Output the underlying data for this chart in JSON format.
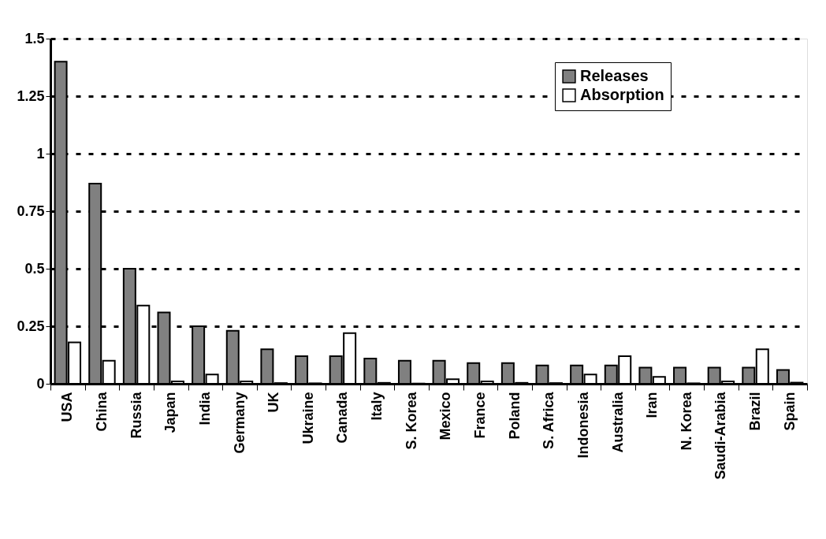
{
  "chart_data": {
    "type": "bar",
    "categories": [
      "USA",
      "China",
      "Russia",
      "Japan",
      "India",
      "Germany",
      "UK",
      "Ukraine",
      "Canada",
      "Italy",
      "S. Korea",
      "Mexico",
      "France",
      "Poland",
      "S. Africa",
      "Indonesia",
      "Australia",
      "Iran",
      "N. Korea",
      "Saudi-Arabia",
      "Brazil",
      "Spain"
    ],
    "series": [
      {
        "name": "Releases",
        "color": "#808080",
        "values": [
          1.4,
          0.87,
          0.5,
          0.31,
          0.25,
          0.23,
          0.15,
          0.12,
          0.12,
          0.11,
          0.1,
          0.1,
          0.09,
          0.09,
          0.08,
          0.08,
          0.08,
          0.07,
          0.07,
          0.07,
          0.07,
          0.06
        ]
      },
      {
        "name": "Absorption",
        "color": "#ffffff",
        "values": [
          0.18,
          0.1,
          0.34,
          0.01,
          0.04,
          0.01,
          0.003,
          0.002,
          0.22,
          0.004,
          0.001,
          0.02,
          0.01,
          0.004,
          0.003,
          0.04,
          0.12,
          0.03,
          0.002,
          0.01,
          0.15,
          0.005
        ]
      }
    ],
    "ylim": [
      0,
      1.5
    ],
    "yticks": [
      0,
      0.25,
      0.5,
      0.75,
      1,
      1.25,
      1.5
    ],
    "grid": "y",
    "legend": "top right"
  }
}
